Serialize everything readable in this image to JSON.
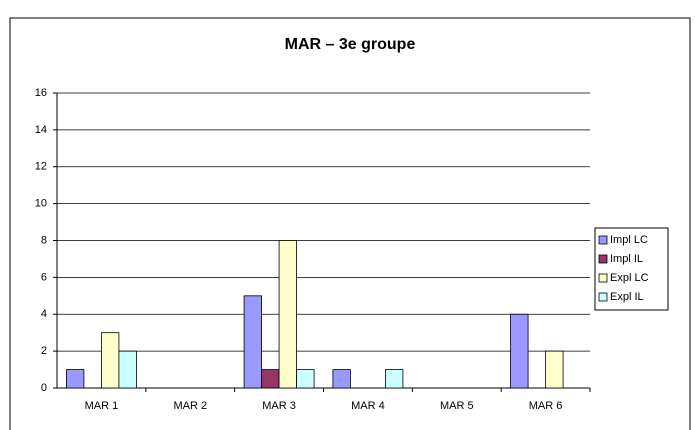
{
  "chart_data": {
    "type": "bar",
    "title": "MAR – 3e groupe",
    "categories": [
      "MAR 1",
      "MAR 2",
      "MAR 3",
      "MAR 4",
      "MAR 5",
      "MAR 6"
    ],
    "series": [
      {
        "name": "Impl LC",
        "color": "#9999ff",
        "values": [
          1,
          0,
          5,
          1,
          0,
          4
        ]
      },
      {
        "name": "Impl IL",
        "color": "#993366",
        "values": [
          0,
          0,
          1,
          0,
          0,
          0
        ]
      },
      {
        "name": "Expl LC",
        "color": "#ffffcc",
        "values": [
          3,
          0,
          8,
          0,
          0,
          2
        ]
      },
      {
        "name": "Expl IL",
        "color": "#ccffff",
        "values": [
          2,
          0,
          1,
          1,
          0,
          0
        ]
      }
    ],
    "ylim": [
      0,
      16
    ],
    "yticks": [
      0,
      2,
      4,
      6,
      8,
      10,
      12,
      14,
      16
    ],
    "grid": true,
    "legend": "right"
  }
}
